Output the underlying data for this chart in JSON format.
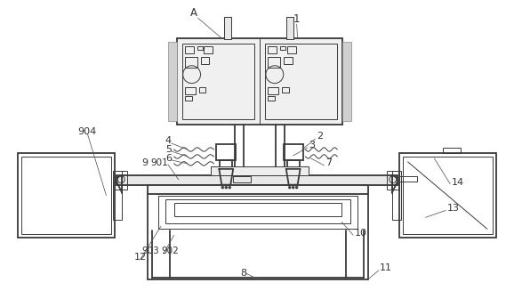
{
  "bg_color": "#ffffff",
  "line_color": "#3a3a3a",
  "lw_main": 1.3,
  "lw_thin": 0.7,
  "lw_label": 0.55,
  "label_color": "#333333",
  "label_fs": 7.5
}
